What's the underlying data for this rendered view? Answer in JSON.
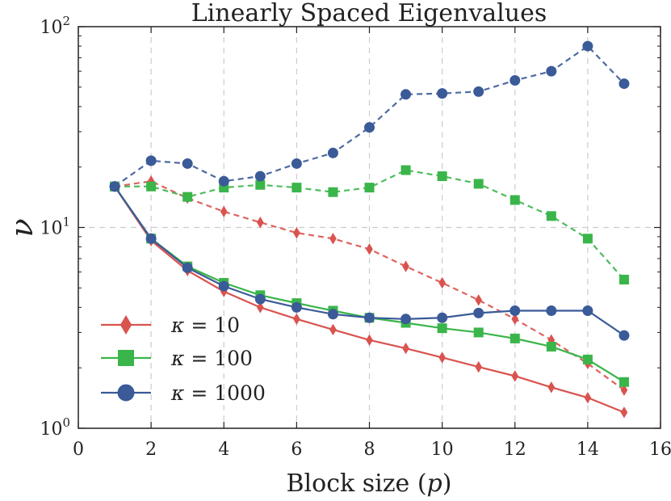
{
  "chart_data": {
    "type": "line",
    "title": "Linearly Spaced Eigenvalues",
    "xlabel": "Block size (p)",
    "ylabel": "ν",
    "xlim": [
      0,
      16
    ],
    "ylim": [
      1,
      100
    ],
    "yscale": "log",
    "grid": true,
    "legend_position": "lower-left",
    "x_ticks": [
      0,
      2,
      4,
      6,
      8,
      10,
      12,
      14,
      16
    ],
    "x_tick_labels": [
      "0",
      "2",
      "4",
      "6",
      "8",
      "10",
      "12",
      "14",
      "16"
    ],
    "y_ticks": [
      1,
      10,
      100
    ],
    "y_tick_labels": [
      {
        "base": "10",
        "exp": "0"
      },
      {
        "base": "10",
        "exp": "1"
      },
      {
        "base": "10",
        "exp": "2"
      }
    ],
    "x": [
      1,
      2,
      3,
      4,
      5,
      6,
      7,
      8,
      9,
      10,
      11,
      12,
      13,
      14,
      15
    ],
    "series": [
      {
        "name": "κ = 10",
        "kappa": "10",
        "color": "#d9534f",
        "marker": "diamond",
        "solid": [
          16.0,
          8.6,
          6.1,
          4.8,
          4.0,
          3.5,
          3.1,
          2.75,
          2.5,
          2.25,
          2.02,
          1.82,
          1.6,
          1.42,
          1.2
        ],
        "dashed": [
          16.0,
          17.0,
          14.0,
          12.0,
          10.6,
          9.4,
          8.8,
          7.8,
          6.4,
          5.3,
          4.35,
          3.5,
          2.75,
          2.1,
          1.55
        ]
      },
      {
        "name": "κ = 100",
        "kappa": "100",
        "color": "#3ab54a",
        "marker": "square",
        "solid": [
          16.0,
          8.8,
          6.4,
          5.3,
          4.6,
          4.2,
          3.85,
          3.55,
          3.35,
          3.15,
          3.0,
          2.8,
          2.55,
          2.2,
          1.7
        ],
        "dashed": [
          16.0,
          16.0,
          14.2,
          15.8,
          16.3,
          15.8,
          15.0,
          15.8,
          19.3,
          18.0,
          16.5,
          13.7,
          11.4,
          8.8,
          5.5
        ]
      },
      {
        "name": "κ = 1000",
        "kappa": "1000",
        "color": "#3a5a98",
        "marker": "circle",
        "solid": [
          16.0,
          8.8,
          6.3,
          5.1,
          4.4,
          4.0,
          3.7,
          3.55,
          3.5,
          3.55,
          3.75,
          3.85,
          3.85,
          3.85,
          2.9
        ],
        "dashed": [
          16.0,
          21.5,
          20.8,
          17.0,
          18.0,
          20.8,
          23.5,
          31.5,
          46.0,
          46.5,
          47.5,
          54.0,
          60.0,
          80.0,
          52.0
        ]
      }
    ]
  }
}
